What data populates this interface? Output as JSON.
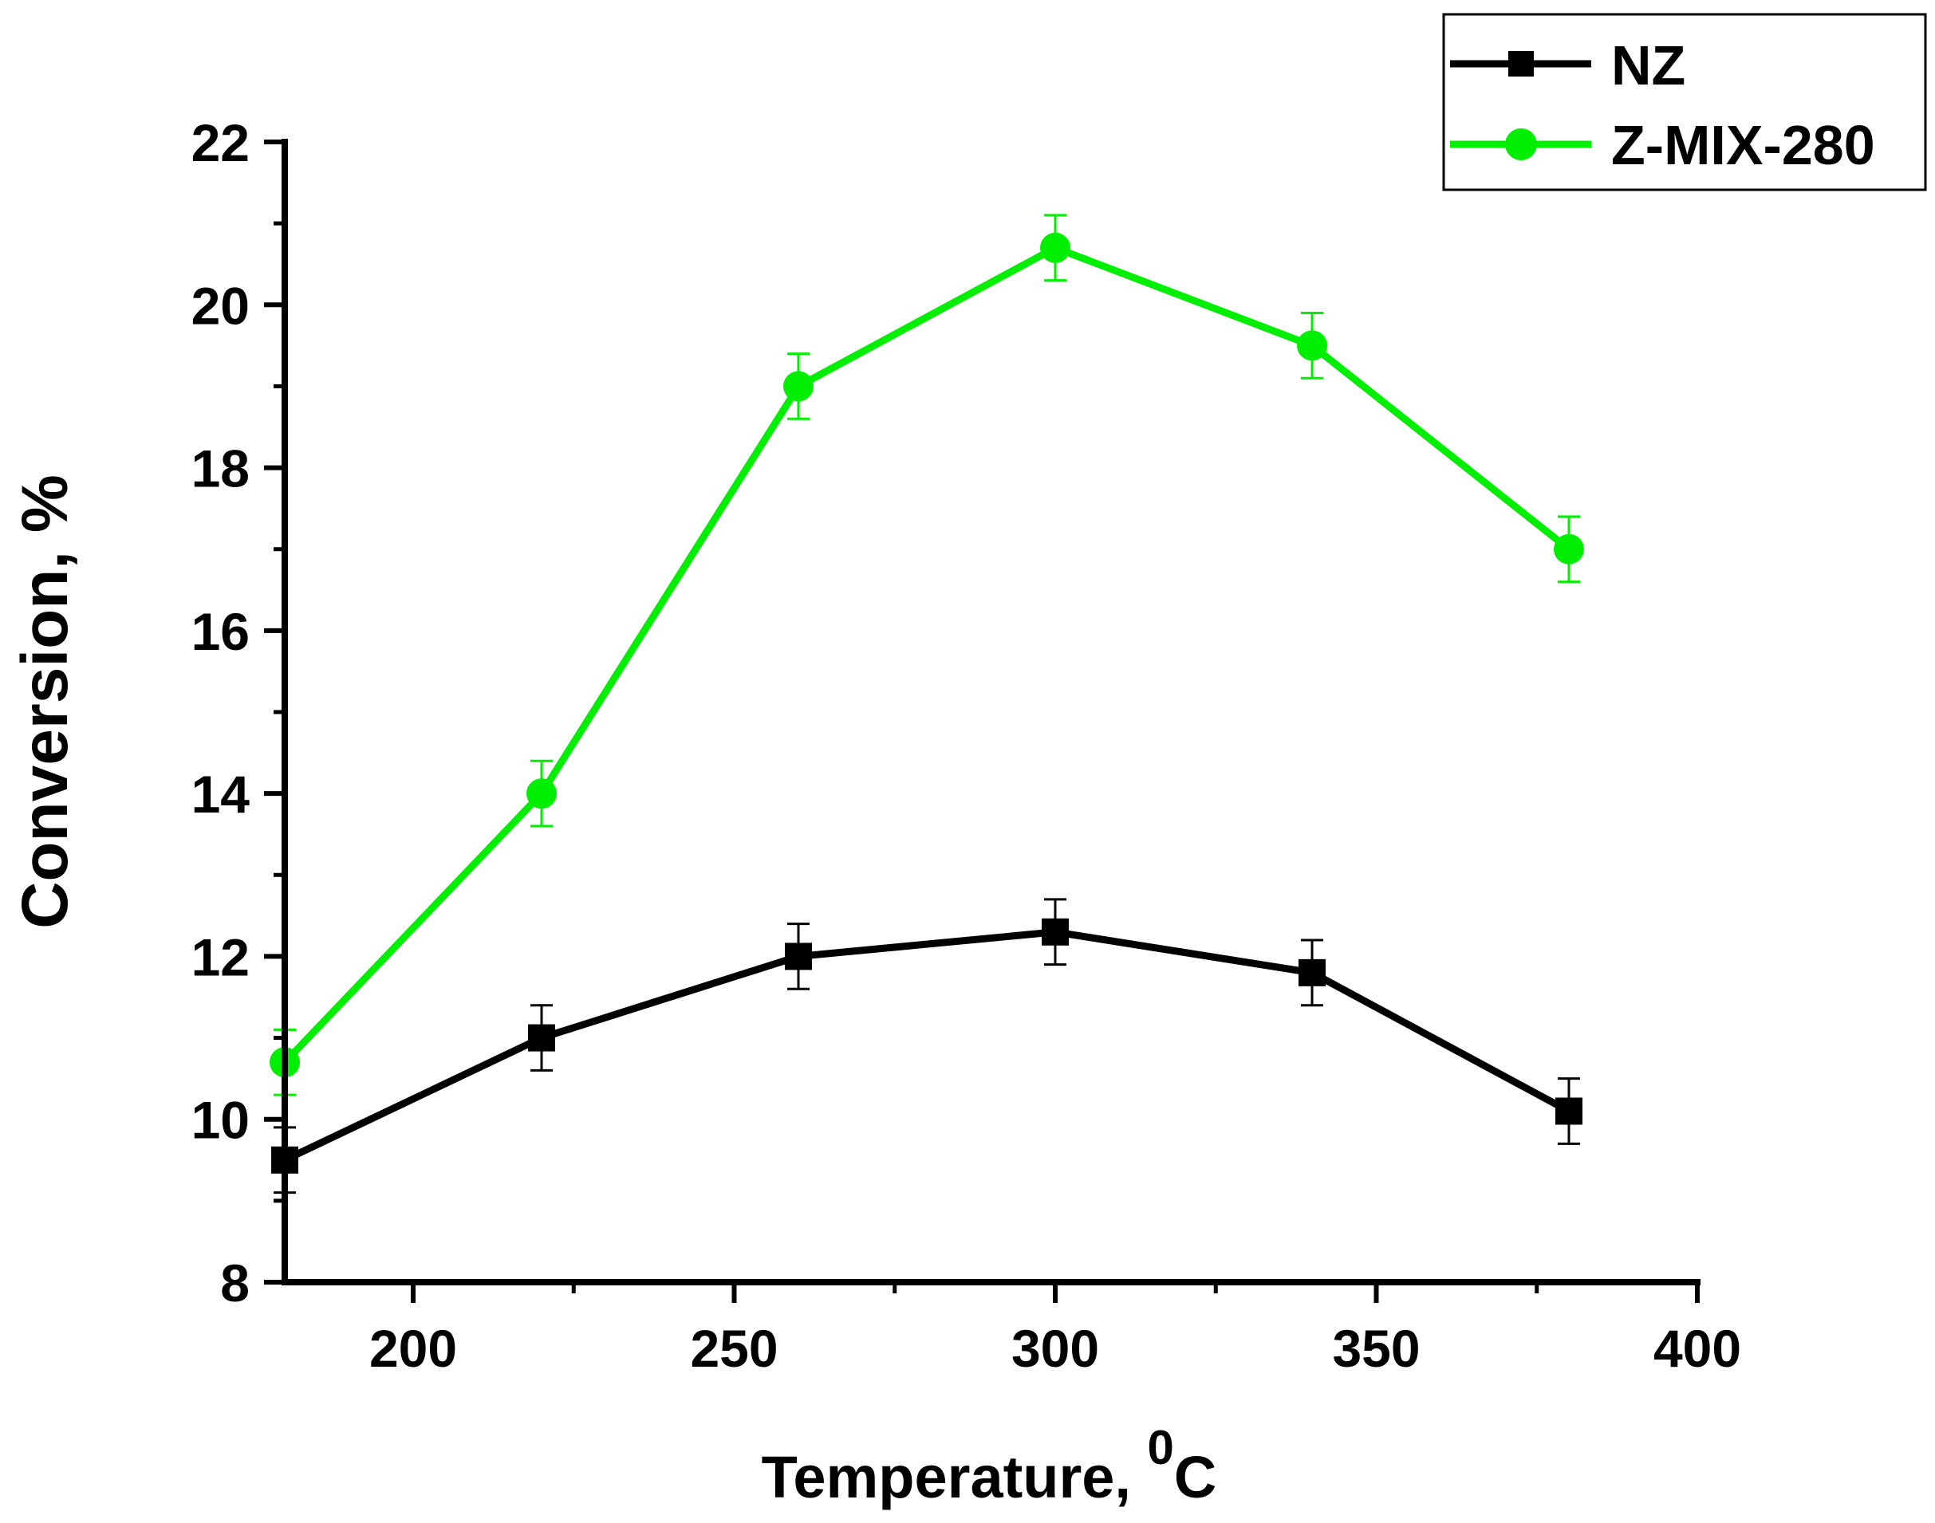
{
  "chart_data": {
    "type": "line",
    "title": "",
    "xlabel": "Temperature, ",
    "xlabel_superscript": "0",
    "xlabel_unit": "C",
    "ylabel": "Conversion, %",
    "xlim": [
      180,
      400
    ],
    "ylim": [
      8,
      22
    ],
    "xticks": [
      200,
      250,
      300,
      350,
      400
    ],
    "yticks": [
      8,
      10,
      12,
      14,
      16,
      18,
      20,
      22
    ],
    "grid": false,
    "legend_position": "top-right",
    "x": [
      180,
      220,
      260,
      300,
      340,
      380
    ],
    "series": [
      {
        "name": "NZ",
        "color": "#000000",
        "marker": "square",
        "values": [
          9.5,
          11.0,
          12.0,
          12.3,
          11.8,
          10.1
        ],
        "errors": [
          0.4,
          0.4,
          0.4,
          0.4,
          0.4,
          0.4
        ]
      },
      {
        "name": "Z-MIX-280",
        "color": "#00ee00",
        "marker": "circle",
        "values": [
          10.7,
          14.0,
          19.0,
          20.7,
          19.5,
          17.0
        ],
        "errors": [
          0.4,
          0.4,
          0.4,
          0.4,
          0.4,
          0.4
        ]
      }
    ]
  }
}
